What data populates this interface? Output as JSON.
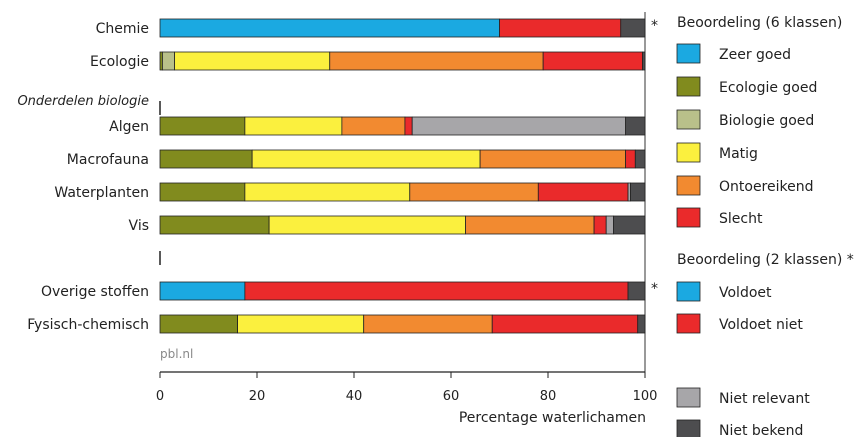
{
  "chart_data": {
    "type": "bar",
    "stacked": true,
    "orientation": "horizontal",
    "xlabel": "Percentage waterlichamen",
    "xlim": [
      0,
      100
    ],
    "xticks": [
      0,
      20,
      40,
      60,
      80,
      100
    ],
    "source_label": "pbl.nl",
    "section_label": "Onderdelen biologie",
    "categories": [
      "Chemie",
      "Ecologie",
      "Algen",
      "Macrofauna",
      "Waterplanten",
      "Vis",
      "Overige stoffen",
      "Fysisch-chemisch"
    ],
    "asterisk_rows": [
      "Chemie",
      "Overige stoffen"
    ],
    "rows": [
      {
        "name": "Chemie",
        "segments": [
          {
            "key": "zeer_goed",
            "value": 70
          },
          {
            "key": "slecht",
            "value": 25
          },
          {
            "key": "niet_bekend",
            "value": 5
          }
        ]
      },
      {
        "name": "Ecologie",
        "segments": [
          {
            "key": "ecologie_goed",
            "value": 0.5
          },
          {
            "key": "biologie_goed",
            "value": 2.5
          },
          {
            "key": "matig",
            "value": 32
          },
          {
            "key": "ontoereikend",
            "value": 44
          },
          {
            "key": "slecht",
            "value": 20.5
          },
          {
            "key": "niet_bekend",
            "value": 0.5
          }
        ]
      },
      {
        "name": "Algen",
        "segments": [
          {
            "key": "ecologie_goed",
            "value": 17.5
          },
          {
            "key": "matig",
            "value": 20
          },
          {
            "key": "ontoereikend",
            "value": 13
          },
          {
            "key": "slecht",
            "value": 1.5
          },
          {
            "key": "niet_relevant",
            "value": 44
          },
          {
            "key": "niet_bekend",
            "value": 4
          }
        ]
      },
      {
        "name": "Macrofauna",
        "segments": [
          {
            "key": "ecologie_goed",
            "value": 19
          },
          {
            "key": "matig",
            "value": 47
          },
          {
            "key": "ontoereikend",
            "value": 30
          },
          {
            "key": "slecht",
            "value": 2
          },
          {
            "key": "niet_bekend",
            "value": 2
          }
        ]
      },
      {
        "name": "Waterplanten",
        "segments": [
          {
            "key": "ecologie_goed",
            "value": 17.5
          },
          {
            "key": "matig",
            "value": 34
          },
          {
            "key": "ontoereikend",
            "value": 26.5
          },
          {
            "key": "slecht",
            "value": 18.5
          },
          {
            "key": "niet_relevant",
            "value": 0.5
          },
          {
            "key": "niet_bekend",
            "value": 3
          }
        ]
      },
      {
        "name": "Vis",
        "segments": [
          {
            "key": "ecologie_goed",
            "value": 22.5
          },
          {
            "key": "matig",
            "value": 40.5
          },
          {
            "key": "ontoereikend",
            "value": 26.5
          },
          {
            "key": "slecht",
            "value": 2.5
          },
          {
            "key": "niet_relevant",
            "value": 1.5
          },
          {
            "key": "niet_bekend",
            "value": 6.5
          }
        ]
      },
      {
        "name": "Overige stoffen",
        "segments": [
          {
            "key": "voldoet",
            "value": 17.5
          },
          {
            "key": "voldoet_niet",
            "value": 79
          },
          {
            "key": "niet_bekend",
            "value": 3.5
          }
        ]
      },
      {
        "name": "Fysisch-chemisch",
        "segments": [
          {
            "key": "ecologie_goed",
            "value": 16
          },
          {
            "key": "matig",
            "value": 26
          },
          {
            "key": "ontoereikend",
            "value": 26.5
          },
          {
            "key": "slecht",
            "value": 30
          },
          {
            "key": "niet_bekend",
            "value": 1.5
          }
        ]
      }
    ],
    "legend": {
      "group1_title": "Beoordeling (6 klassen)",
      "group1": [
        {
          "key": "zeer_goed",
          "label": "Zeer goed",
          "color": "#1ba9e1"
        },
        {
          "key": "ecologie_goed",
          "label": "Ecologie goed",
          "color": "#818b1e"
        },
        {
          "key": "biologie_goed",
          "label": "Biologie goed",
          "color": "#b9c08a"
        },
        {
          "key": "matig",
          "label": "Matig",
          "color": "#fbf03e"
        },
        {
          "key": "ontoereikend",
          "label": "Ontoereikend",
          "color": "#f28a30"
        },
        {
          "key": "slecht",
          "label": "Slecht",
          "color": "#ea2a2b"
        }
      ],
      "group2_title": "Beoordeling (2 klassen) *",
      "group2": [
        {
          "key": "voldoet",
          "label": "Voldoet",
          "color": "#1ba9e1"
        },
        {
          "key": "voldoet_niet",
          "label": "Voldoet niet",
          "color": "#ea2a2b"
        }
      ],
      "group3": [
        {
          "key": "niet_relevant",
          "label": "Niet relevant",
          "color": "#a7a6a9"
        },
        {
          "key": "niet_bekend",
          "label": "Niet bekend",
          "color": "#4d4d4f"
        }
      ]
    }
  }
}
